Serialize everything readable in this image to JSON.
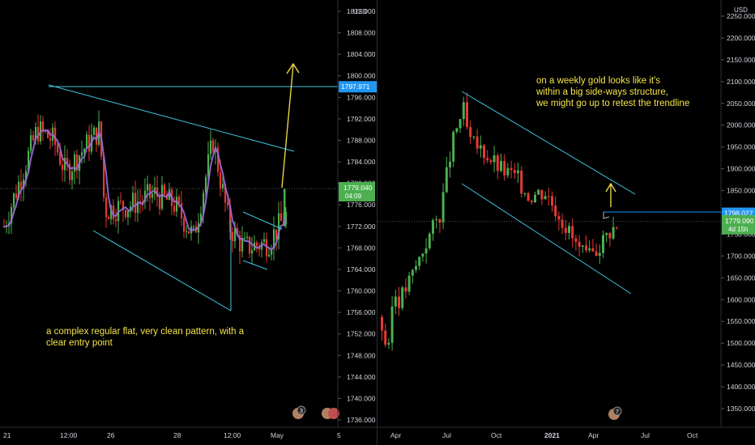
{
  "left_chart": {
    "currency": "USD",
    "price_ticks": [
      {
        "v": 1812,
        "label": "1812.000"
      },
      {
        "v": 1808,
        "label": "1808.000"
      },
      {
        "v": 1804,
        "label": "1804.000"
      },
      {
        "v": 1800,
        "label": "1800.000"
      },
      {
        "v": 1796,
        "label": "1796.000"
      },
      {
        "v": 1792,
        "label": "1792.000"
      },
      {
        "v": 1788,
        "label": "1788.000"
      },
      {
        "v": 1784,
        "label": "1784.000"
      },
      {
        "v": 1780,
        "label": "1780.000"
      },
      {
        "v": 1776,
        "label": "1776.000"
      },
      {
        "v": 1772,
        "label": "1772.000"
      },
      {
        "v": 1768,
        "label": "1768.000"
      },
      {
        "v": 1764,
        "label": "1764.000"
      },
      {
        "v": 1760,
        "label": "1760.000"
      },
      {
        "v": 1756,
        "label": "1756.000"
      },
      {
        "v": 1752,
        "label": "1752.000"
      },
      {
        "v": 1748,
        "label": "1748.000"
      },
      {
        "v": 1744,
        "label": "1744.000"
      },
      {
        "v": 1740,
        "label": "1740.000"
      },
      {
        "v": 1736,
        "label": "1736.000"
      }
    ],
    "resistance_label": "1797.971",
    "current_price": "1779.040",
    "countdown": "04:09",
    "time_ticks": [
      "21",
      "12:00",
      "26",
      "28",
      "12:00",
      "May",
      "5"
    ],
    "annotation": [
      "a complex regular flat, very clean pattern, with a",
      "clear entry point"
    ],
    "event_badge": "3",
    "colors": {
      "up": "#26a69a",
      "down": "#ef5350",
      "green_bar": "#4caf50",
      "red_bar": "#e53935",
      "trend": "#3ec6e0",
      "ma": "#9c6bd8",
      "arrow": "#f5e44a",
      "price_tag": "#4caf50",
      "level_tag": "#2196f3"
    }
  },
  "right_chart": {
    "currency": "USD",
    "price_ticks": [
      {
        "v": 2250,
        "label": "2250.000"
      },
      {
        "v": 2200,
        "label": "2200.000"
      },
      {
        "v": 2150,
        "label": "2150.000"
      },
      {
        "v": 2100,
        "label": "2100.000"
      },
      {
        "v": 2050,
        "label": "2050.000"
      },
      {
        "v": 2000,
        "label": "2000.000"
      },
      {
        "v": 1950,
        "label": "1950.000"
      },
      {
        "v": 1900,
        "label": "1900.000"
      },
      {
        "v": 1850,
        "label": "1850.000"
      },
      {
        "v": 1800,
        "label": "1800.000"
      },
      {
        "v": 1750,
        "label": "1750.000"
      },
      {
        "v": 1700,
        "label": "1700.000"
      },
      {
        "v": 1650,
        "label": "1650.000"
      },
      {
        "v": 1600,
        "label": "1600.000"
      },
      {
        "v": 1550,
        "label": "1550.000"
      },
      {
        "v": 1500,
        "label": "1500.000"
      },
      {
        "v": 1450,
        "label": "1450.000"
      },
      {
        "v": 1400,
        "label": "1400.000"
      },
      {
        "v": 1350,
        "label": "1350.000"
      }
    ],
    "resistance_label": "1798.027",
    "current_price": "1779.090",
    "countdown": "4d 15h",
    "time_ticks": [
      "Apr",
      "Jul",
      "Oct",
      "2021",
      "Apr",
      "Jul",
      "Oct"
    ],
    "annotation": [
      "on a weekly gold looks like it's",
      "within a big side-ways structure,",
      "we might go up to retest the trendline"
    ],
    "event_badge": "7"
  }
}
